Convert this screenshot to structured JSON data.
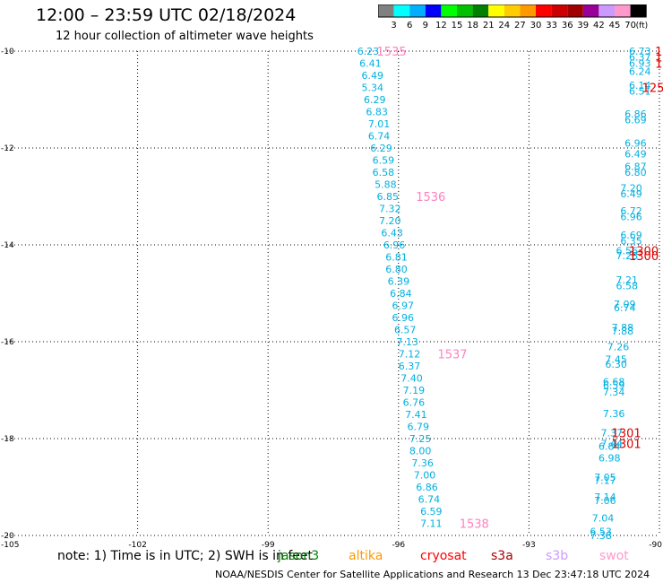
{
  "title": "12:00 – 23:59 UTC 02/18/2024",
  "subtitle": "12 hour collection of altimeter wave heights",
  "footnote": "note:  1) Time is in UTC; 2) SWH is in feet",
  "credit": "NOAA/NESDIS Center for Satellite Applications and Research     13 Dec 23:47:18 UTC 2024",
  "legend": {
    "unit": "(ft)",
    "labels": [
      "3",
      "6",
      "9",
      "12",
      "15",
      "18",
      "21",
      "24",
      "27",
      "30",
      "33",
      "36",
      "39",
      "42",
      "45",
      "70"
    ],
    "colors": [
      "#808080",
      "#00ffff",
      "#00b0ff",
      "#0000ff",
      "#00ff00",
      "#00c000",
      "#008000",
      "#ffff00",
      "#ffcc00",
      "#ff9900",
      "#ff0000",
      "#cc0000",
      "#a00000",
      "#990099",
      "#cc99ff",
      "#ff99cc",
      "#000000"
    ]
  },
  "satellites": [
    {
      "name": "jason3",
      "color": "#008000"
    },
    {
      "name": "altika",
      "color": "#ff9900"
    },
    {
      "name": "cryosat",
      "color": "#ff0000"
    },
    {
      "name": "s3a",
      "color": "#aa0000"
    },
    {
      "name": "s3b",
      "color": "#cc99ff"
    },
    {
      "name": "swot",
      "color": "#ff99cc"
    }
  ],
  "chart_data": {
    "type": "scatter",
    "title": "12:00 – 23:59 UTC 02/18/2024",
    "subtitle": "12 hour collection of altimeter wave heights",
    "xlabel": "",
    "ylabel": "",
    "xlim": [
      -105,
      -90
    ],
    "ylim": [
      -20,
      -10
    ],
    "xticks": [
      -105,
      -102,
      -99,
      -96,
      -93,
      -90
    ],
    "yticks": [
      -10,
      -12,
      -14,
      -16,
      -18,
      -20
    ],
    "xtick_labels": [
      "-105",
      "-102",
      "-99",
      "-96",
      "-93",
      "-90"
    ],
    "ytick_labels": [
      "-10",
      "-12",
      "-14",
      "-16",
      "-18",
      "-20"
    ],
    "grid": true,
    "series": [
      {
        "name": "track-1",
        "color": "#00b0e0",
        "points": [
          {
            "x": -96.95,
            "y": -10.0,
            "v": "6.23"
          },
          {
            "x": -96.9,
            "y": -10.25,
            "v": "6.41"
          },
          {
            "x": -96.85,
            "y": -10.5,
            "v": "6.49"
          },
          {
            "x": -96.85,
            "y": -10.75,
            "v": "5.34"
          },
          {
            "x": -96.8,
            "y": -11.0,
            "v": "6.29"
          },
          {
            "x": -96.75,
            "y": -11.25,
            "v": "6.83"
          },
          {
            "x": -96.7,
            "y": -11.5,
            "v": "7.01"
          },
          {
            "x": -96.7,
            "y": -11.75,
            "v": "6.74"
          },
          {
            "x": -96.65,
            "y": -12.0,
            "v": "6.29"
          },
          {
            "x": -96.6,
            "y": -12.25,
            "v": "6.59"
          },
          {
            "x": -96.6,
            "y": -12.5,
            "v": "6.58"
          },
          {
            "x": -96.55,
            "y": -12.75,
            "v": "5.88"
          },
          {
            "x": -96.5,
            "y": -13.0,
            "v": "6.85"
          },
          {
            "x": -96.45,
            "y": -13.25,
            "v": "7.32"
          },
          {
            "x": -96.45,
            "y": -13.5,
            "v": "7.20"
          },
          {
            "x": -96.4,
            "y": -13.75,
            "v": "6.43"
          },
          {
            "x": -96.35,
            "y": -14.0,
            "v": "6.96"
          },
          {
            "x": -96.3,
            "y": -14.25,
            "v": "6.81"
          },
          {
            "x": -96.3,
            "y": -14.5,
            "v": "6.80"
          },
          {
            "x": -96.25,
            "y": -14.75,
            "v": "6.39"
          },
          {
            "x": -96.2,
            "y": -15.0,
            "v": "6.84"
          },
          {
            "x": -96.15,
            "y": -15.25,
            "v": "6.97"
          },
          {
            "x": -96.15,
            "y": -15.5,
            "v": "6.96"
          },
          {
            "x": -96.1,
            "y": -15.75,
            "v": "6.57"
          },
          {
            "x": -96.05,
            "y": -16.0,
            "v": "7.13"
          },
          {
            "x": -96.0,
            "y": -16.25,
            "v": "7.12"
          },
          {
            "x": -96.0,
            "y": -16.5,
            "v": "6.37"
          },
          {
            "x": -95.95,
            "y": -16.75,
            "v": "7.40"
          },
          {
            "x": -95.9,
            "y": -17.0,
            "v": "7.19"
          },
          {
            "x": -95.9,
            "y": -17.25,
            "v": "6.76"
          },
          {
            "x": -95.85,
            "y": -17.5,
            "v": "7.41"
          },
          {
            "x": -95.8,
            "y": -17.75,
            "v": "6.79"
          },
          {
            "x": -95.75,
            "y": -18.0,
            "v": "7.25"
          },
          {
            "x": -95.75,
            "y": -18.25,
            "v": "8.00"
          },
          {
            "x": -95.7,
            "y": -18.5,
            "v": "7.36"
          },
          {
            "x": -95.65,
            "y": -18.75,
            "v": "7.00"
          },
          {
            "x": -95.6,
            "y": -19.0,
            "v": "6.86"
          },
          {
            "x": -95.55,
            "y": -19.25,
            "v": "6.74"
          },
          {
            "x": -95.5,
            "y": -19.5,
            "v": "6.59"
          },
          {
            "x": -95.5,
            "y": -19.75,
            "v": "7.11"
          }
        ]
      },
      {
        "name": "track-2",
        "color": "#00b0e0",
        "points": [
          {
            "x": -90.7,
            "y": -10.0,
            "v": "6.73"
          },
          {
            "x": -90.7,
            "y": -10.12,
            "v": "6.37"
          },
          {
            "x": -90.7,
            "y": -10.25,
            "v": "6.93"
          },
          {
            "x": -90.7,
            "y": -10.42,
            "v": "6.24"
          },
          {
            "x": -90.7,
            "y": -10.7,
            "v": "6.14"
          },
          {
            "x": -90.7,
            "y": -10.82,
            "v": "6.51"
          },
          {
            "x": -90.8,
            "y": -11.3,
            "v": "6.86"
          },
          {
            "x": -90.8,
            "y": -11.42,
            "v": "6.69"
          },
          {
            "x": -90.8,
            "y": -11.9,
            "v": "6.96"
          },
          {
            "x": -90.8,
            "y": -12.12,
            "v": "6.49"
          },
          {
            "x": -90.8,
            "y": -12.38,
            "v": "6.87"
          },
          {
            "x": -90.8,
            "y": -12.5,
            "v": "6.80"
          },
          {
            "x": -90.9,
            "y": -12.82,
            "v": "7.20"
          },
          {
            "x": -90.9,
            "y": -12.94,
            "v": "6.49"
          },
          {
            "x": -90.9,
            "y": -13.3,
            "v": "6.72"
          },
          {
            "x": -90.9,
            "y": -13.42,
            "v": "6.96"
          },
          {
            "x": -90.9,
            "y": -13.8,
            "v": "6.69"
          },
          {
            "x": -90.9,
            "y": -13.92,
            "v": "6.35"
          },
          {
            "x": -91.0,
            "y": -14.12,
            "v": "6.56"
          },
          {
            "x": -91.0,
            "y": -14.22,
            "v": "7.28"
          },
          {
            "x": -91.0,
            "y": -14.72,
            "v": "7.21"
          },
          {
            "x": -91.0,
            "y": -14.84,
            "v": "6.58"
          },
          {
            "x": -91.05,
            "y": -15.22,
            "v": "7.09"
          },
          {
            "x": -91.05,
            "y": -15.3,
            "v": "6.74"
          },
          {
            "x": -91.1,
            "y": -15.7,
            "v": "7.88"
          },
          {
            "x": -91.1,
            "y": -15.78,
            "v": "7.88"
          },
          {
            "x": -91.2,
            "y": -16.1,
            "v": "7.26"
          },
          {
            "x": -91.25,
            "y": -16.36,
            "v": "7.45"
          },
          {
            "x": -91.25,
            "y": -16.46,
            "v": "6.30"
          },
          {
            "x": -91.3,
            "y": -16.82,
            "v": "6.68"
          },
          {
            "x": -91.3,
            "y": -16.9,
            "v": "6.59"
          },
          {
            "x": -91.3,
            "y": -17.04,
            "v": "7.34"
          },
          {
            "x": -91.3,
            "y": -17.48,
            "v": "7.36"
          },
          {
            "x": -91.35,
            "y": -17.88,
            "v": "7.37"
          },
          {
            "x": -91.35,
            "y": -18.1,
            "v": "7.44"
          },
          {
            "x": -91.4,
            "y": -18.16,
            "v": "6.84"
          },
          {
            "x": -91.4,
            "y": -18.4,
            "v": "6.98"
          },
          {
            "x": -91.5,
            "y": -18.8,
            "v": "7.05"
          },
          {
            "x": -91.5,
            "y": -18.86,
            "v": "7.17"
          },
          {
            "x": -91.5,
            "y": -19.2,
            "v": "7.14"
          },
          {
            "x": -91.5,
            "y": -19.28,
            "v": "7.06"
          },
          {
            "x": -91.55,
            "y": -19.64,
            "v": "7.04"
          },
          {
            "x": -91.6,
            "y": -19.92,
            "v": "6.53"
          },
          {
            "x": -91.6,
            "y": -20.0,
            "v": "7.38"
          }
        ]
      }
    ],
    "annotations": [
      {
        "text": "1535",
        "x": -96.5,
        "y": -10.0,
        "color": "#ff80c0"
      },
      {
        "text": "1536",
        "x": -95.6,
        "y": -13.0,
        "color": "#ff80c0"
      },
      {
        "text": "1537",
        "x": -95.1,
        "y": -16.25,
        "color": "#ff80c0"
      },
      {
        "text": "1538",
        "x": -94.6,
        "y": -19.75,
        "color": "#ff80c0"
      },
      {
        "text": "125",
        "x": -90.1,
        "y": -10.0,
        "color": "#dd0000"
      },
      {
        "text": "125",
        "x": -90.1,
        "y": -10.12,
        "color": "#dd0000"
      },
      {
        "text": "125",
        "x": -90.1,
        "y": -10.25,
        "color": "#dd0000"
      },
      {
        "text": "125",
        "x": -90.4,
        "y": -10.75,
        "color": "#dd0000"
      },
      {
        "text": "1300",
        "x": -90.7,
        "y": -14.12,
        "color": "#dd0000"
      },
      {
        "text": "1300",
        "x": -90.7,
        "y": -14.22,
        "color": "#dd0000"
      },
      {
        "text": "1301",
        "x": -91.1,
        "y": -17.88,
        "color": "#dd0000"
      },
      {
        "text": "1301",
        "x": -91.1,
        "y": -18.1,
        "color": "#dd0000"
      }
    ]
  }
}
